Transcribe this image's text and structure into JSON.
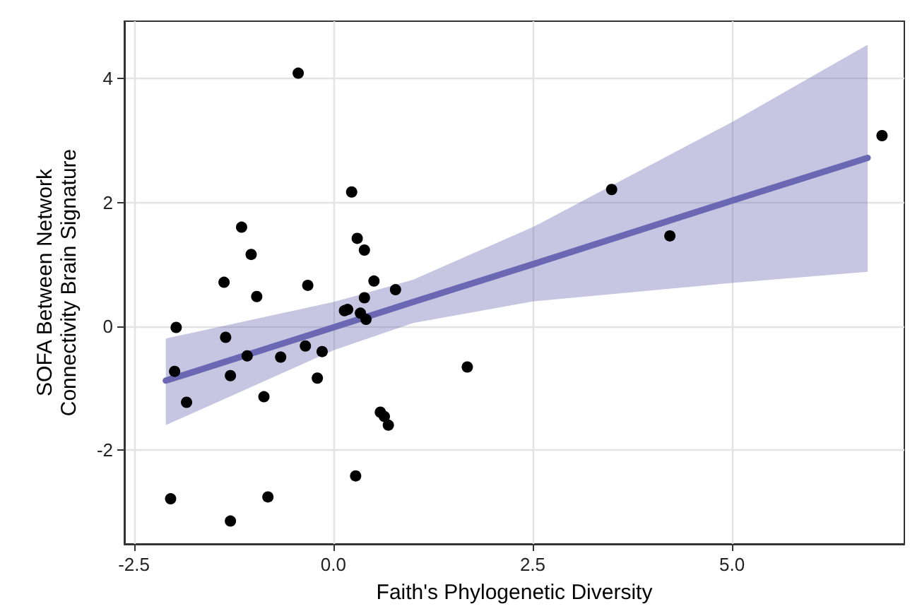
{
  "chart_data": {
    "type": "scatter",
    "xlabel": "Faith's Phylogenetic Diversity",
    "ylabel": "SOFA Between Network\nConnectivity Brain Signature",
    "xlim": [
      -2.62,
      7.16
    ],
    "ylim": [
      -3.52,
      4.93
    ],
    "xticks": [
      {
        "value": -2.5,
        "label": "-2.5"
      },
      {
        "value": 0,
        "label": "0.0"
      },
      {
        "value": 2.5,
        "label": "2.5"
      },
      {
        "value": 5,
        "label": "5.0"
      }
    ],
    "yticks": [
      -2,
      0,
      2,
      4
    ],
    "grid": true,
    "series": [
      {
        "marker": "circle",
        "color": "#000000",
        "x": [
          -0.44,
          6.88,
          3.49,
          4.22,
          0.23,
          -1.15,
          -1.03,
          -1.37,
          -0.96,
          -0.32,
          0.3,
          0.39,
          0.51,
          0.78,
          0.39,
          0.34,
          0.41,
          0.14,
          0.18,
          -1.97,
          -1.35,
          -0.35,
          -0.14,
          -1.08,
          -0.66,
          -1.99,
          -1.29,
          1.68,
          -0.2,
          -0.87,
          -1.84,
          0.59,
          0.64,
          0.69,
          0.28,
          -2.04,
          -0.82,
          -1.29
        ],
        "values": [
          4.09,
          3.08,
          2.21,
          1.46,
          2.17,
          1.6,
          1.16,
          0.71,
          0.48,
          0.66,
          1.42,
          1.23,
          0.73,
          0.59,
          0.46,
          0.21,
          0.11,
          0.25,
          0.27,
          -0.02,
          -0.18,
          -0.32,
          -0.41,
          -0.48,
          -0.5,
          -0.73,
          -0.8,
          -0.66,
          -0.84,
          -1.14,
          -1.23,
          -1.39,
          -1.46,
          -1.6,
          -2.42,
          -2.79,
          -2.76,
          -3.15
        ]
      },
      {
        "type": "line",
        "color": "#6b68b3",
        "x": [
          -2.1,
          0,
          1,
          2.5,
          5,
          6.7
        ],
        "values": [
          -0.88,
          -0.02,
          0.39,
          1.0,
          2.03,
          2.72
        ],
        "lower": [
          -1.6,
          -0.39,
          0.05,
          0.4,
          0.7,
          0.88
        ],
        "upper": [
          -0.2,
          0.39,
          0.75,
          1.6,
          3.3,
          4.55
        ]
      }
    ]
  }
}
